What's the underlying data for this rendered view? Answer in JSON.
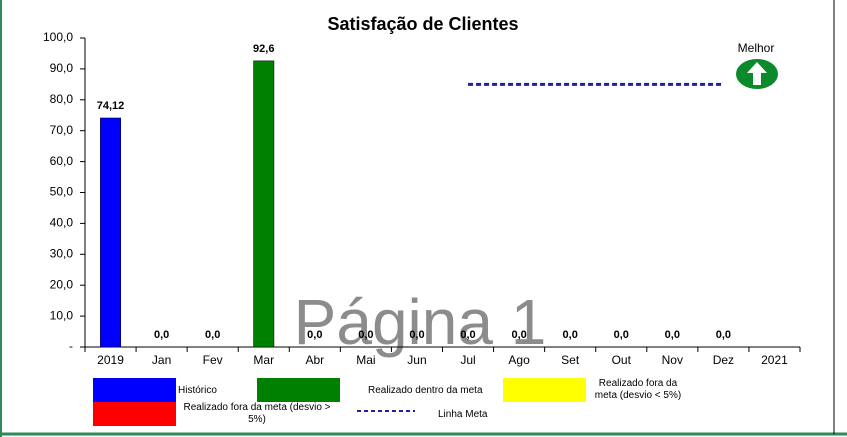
{
  "chart_data": {
    "type": "bar",
    "title": "Satisfação de Clientes",
    "categories": [
      "2019",
      "Jan",
      "Fev",
      "Mar",
      "Abr",
      "Mai",
      "Jun",
      "Jul",
      "Ago",
      "Set",
      "Out",
      "Nov",
      "Dez",
      "2021"
    ],
    "values": [
      74.12,
      0,
      0,
      92.6,
      0,
      0,
      0,
      0,
      0,
      0,
      0,
      0,
      0,
      null
    ],
    "value_labels": [
      "74,12",
      "0,0",
      "0,0",
      "92,6",
      "0,0",
      "0,0",
      "0,0",
      "0,0",
      "0,0",
      "0,0",
      "0,0",
      "0,0",
      "0,0",
      null
    ],
    "colors": [
      "#0000ff",
      "#008000",
      "#008000",
      "#008000",
      "#008000",
      "#008000",
      "#008000",
      "#008000",
      "#008000",
      "#008000",
      "#008000",
      "#008000",
      "#008000",
      "#008000"
    ],
    "ylim": [
      0,
      100
    ],
    "yticks": [
      {
        "value": 0,
        "label": "-"
      },
      {
        "value": 10,
        "label": "10,0"
      },
      {
        "value": 20,
        "label": "20,0"
      },
      {
        "value": 30,
        "label": "30,0"
      },
      {
        "value": 40,
        "label": "40,0"
      },
      {
        "value": 50,
        "label": "50,0"
      },
      {
        "value": 60,
        "label": "60,0"
      },
      {
        "value": 70,
        "label": "70,0"
      },
      {
        "value": 80,
        "label": "80,0"
      },
      {
        "value": 90,
        "label": "90,0"
      },
      {
        "value": 100,
        "label": "100,0"
      }
    ],
    "target": {
      "name": "Linha Meta",
      "value": 85,
      "color": "#1f1fa8",
      "from": "Jul",
      "to": "Dez"
    },
    "legend": [
      {
        "name": "Histórico",
        "color": "#0000ff"
      },
      {
        "name": "Realizado dentro da meta",
        "color": "#008000"
      },
      {
        "name": "Realizado fora da meta (desvio < 5%)",
        "color": "#ffff00"
      },
      {
        "name": "Realizado fora da meta (desvio > 5%)",
        "color": "#ff0000"
      }
    ],
    "annotations": {
      "better": "Melhor",
      "watermark": "Página 1"
    }
  }
}
